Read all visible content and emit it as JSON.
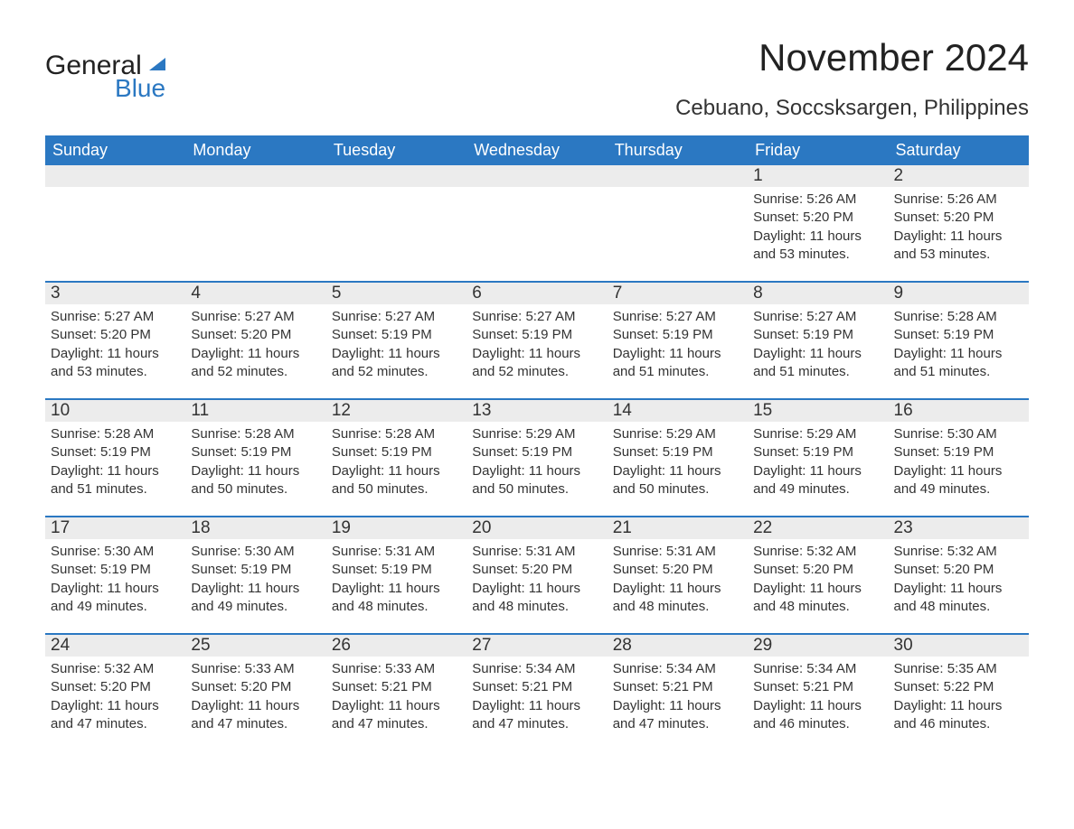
{
  "logo": {
    "word1": "General",
    "word2": "Blue"
  },
  "title": "November 2024",
  "location": "Cebuano, Soccsksargen, Philippines",
  "colors": {
    "header_bg": "#2b78c2",
    "header_text": "#ffffff",
    "strip_bg": "#ececec",
    "text": "#333333",
    "rule": "#2b78c2",
    "page_bg": "#ffffff"
  },
  "fonts": {
    "title_pt": 42,
    "location_pt": 24,
    "dayhead_pt": 18,
    "daynum_pt": 19,
    "body_pt": 15
  },
  "day_headers": [
    "Sunday",
    "Monday",
    "Tuesday",
    "Wednesday",
    "Thursday",
    "Friday",
    "Saturday"
  ],
  "weeks": [
    [
      {
        "empty": true
      },
      {
        "empty": true
      },
      {
        "empty": true
      },
      {
        "empty": true
      },
      {
        "empty": true
      },
      {
        "n": "1",
        "sunrise": "Sunrise: 5:26 AM",
        "sunset": "Sunset: 5:20 PM",
        "daylight": "Daylight: 11 hours and 53 minutes."
      },
      {
        "n": "2",
        "sunrise": "Sunrise: 5:26 AM",
        "sunset": "Sunset: 5:20 PM",
        "daylight": "Daylight: 11 hours and 53 minutes."
      }
    ],
    [
      {
        "n": "3",
        "sunrise": "Sunrise: 5:27 AM",
        "sunset": "Sunset: 5:20 PM",
        "daylight": "Daylight: 11 hours and 53 minutes."
      },
      {
        "n": "4",
        "sunrise": "Sunrise: 5:27 AM",
        "sunset": "Sunset: 5:20 PM",
        "daylight": "Daylight: 11 hours and 52 minutes."
      },
      {
        "n": "5",
        "sunrise": "Sunrise: 5:27 AM",
        "sunset": "Sunset: 5:19 PM",
        "daylight": "Daylight: 11 hours and 52 minutes."
      },
      {
        "n": "6",
        "sunrise": "Sunrise: 5:27 AM",
        "sunset": "Sunset: 5:19 PM",
        "daylight": "Daylight: 11 hours and 52 minutes."
      },
      {
        "n": "7",
        "sunrise": "Sunrise: 5:27 AM",
        "sunset": "Sunset: 5:19 PM",
        "daylight": "Daylight: 11 hours and 51 minutes."
      },
      {
        "n": "8",
        "sunrise": "Sunrise: 5:27 AM",
        "sunset": "Sunset: 5:19 PM",
        "daylight": "Daylight: 11 hours and 51 minutes."
      },
      {
        "n": "9",
        "sunrise": "Sunrise: 5:28 AM",
        "sunset": "Sunset: 5:19 PM",
        "daylight": "Daylight: 11 hours and 51 minutes."
      }
    ],
    [
      {
        "n": "10",
        "sunrise": "Sunrise: 5:28 AM",
        "sunset": "Sunset: 5:19 PM",
        "daylight": "Daylight: 11 hours and 51 minutes."
      },
      {
        "n": "11",
        "sunrise": "Sunrise: 5:28 AM",
        "sunset": "Sunset: 5:19 PM",
        "daylight": "Daylight: 11 hours and 50 minutes."
      },
      {
        "n": "12",
        "sunrise": "Sunrise: 5:28 AM",
        "sunset": "Sunset: 5:19 PM",
        "daylight": "Daylight: 11 hours and 50 minutes."
      },
      {
        "n": "13",
        "sunrise": "Sunrise: 5:29 AM",
        "sunset": "Sunset: 5:19 PM",
        "daylight": "Daylight: 11 hours and 50 minutes."
      },
      {
        "n": "14",
        "sunrise": "Sunrise: 5:29 AM",
        "sunset": "Sunset: 5:19 PM",
        "daylight": "Daylight: 11 hours and 50 minutes."
      },
      {
        "n": "15",
        "sunrise": "Sunrise: 5:29 AM",
        "sunset": "Sunset: 5:19 PM",
        "daylight": "Daylight: 11 hours and 49 minutes."
      },
      {
        "n": "16",
        "sunrise": "Sunrise: 5:30 AM",
        "sunset": "Sunset: 5:19 PM",
        "daylight": "Daylight: 11 hours and 49 minutes."
      }
    ],
    [
      {
        "n": "17",
        "sunrise": "Sunrise: 5:30 AM",
        "sunset": "Sunset: 5:19 PM",
        "daylight": "Daylight: 11 hours and 49 minutes."
      },
      {
        "n": "18",
        "sunrise": "Sunrise: 5:30 AM",
        "sunset": "Sunset: 5:19 PM",
        "daylight": "Daylight: 11 hours and 49 minutes."
      },
      {
        "n": "19",
        "sunrise": "Sunrise: 5:31 AM",
        "sunset": "Sunset: 5:19 PM",
        "daylight": "Daylight: 11 hours and 48 minutes."
      },
      {
        "n": "20",
        "sunrise": "Sunrise: 5:31 AM",
        "sunset": "Sunset: 5:20 PM",
        "daylight": "Daylight: 11 hours and 48 minutes."
      },
      {
        "n": "21",
        "sunrise": "Sunrise: 5:31 AM",
        "sunset": "Sunset: 5:20 PM",
        "daylight": "Daylight: 11 hours and 48 minutes."
      },
      {
        "n": "22",
        "sunrise": "Sunrise: 5:32 AM",
        "sunset": "Sunset: 5:20 PM",
        "daylight": "Daylight: 11 hours and 48 minutes."
      },
      {
        "n": "23",
        "sunrise": "Sunrise: 5:32 AM",
        "sunset": "Sunset: 5:20 PM",
        "daylight": "Daylight: 11 hours and 48 minutes."
      }
    ],
    [
      {
        "n": "24",
        "sunrise": "Sunrise: 5:32 AM",
        "sunset": "Sunset: 5:20 PM",
        "daylight": "Daylight: 11 hours and 47 minutes."
      },
      {
        "n": "25",
        "sunrise": "Sunrise: 5:33 AM",
        "sunset": "Sunset: 5:20 PM",
        "daylight": "Daylight: 11 hours and 47 minutes."
      },
      {
        "n": "26",
        "sunrise": "Sunrise: 5:33 AM",
        "sunset": "Sunset: 5:21 PM",
        "daylight": "Daylight: 11 hours and 47 minutes."
      },
      {
        "n": "27",
        "sunrise": "Sunrise: 5:34 AM",
        "sunset": "Sunset: 5:21 PM",
        "daylight": "Daylight: 11 hours and 47 minutes."
      },
      {
        "n": "28",
        "sunrise": "Sunrise: 5:34 AM",
        "sunset": "Sunset: 5:21 PM",
        "daylight": "Daylight: 11 hours and 47 minutes."
      },
      {
        "n": "29",
        "sunrise": "Sunrise: 5:34 AM",
        "sunset": "Sunset: 5:21 PM",
        "daylight": "Daylight: 11 hours and 46 minutes."
      },
      {
        "n": "30",
        "sunrise": "Sunrise: 5:35 AM",
        "sunset": "Sunset: 5:22 PM",
        "daylight": "Daylight: 11 hours and 46 minutes."
      }
    ]
  ]
}
